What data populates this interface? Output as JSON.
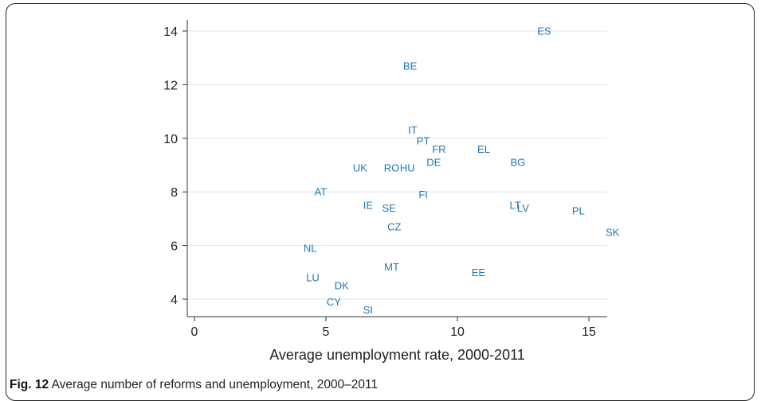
{
  "caption": {
    "label": "Fig. 12",
    "text": "Average number of reforms and unemployment, 2000–2011"
  },
  "chart_data": {
    "type": "scatter",
    "title": "",
    "xlabel": "Average unemployment rate, 2000-2011",
    "ylabel": "",
    "xlim": [
      0,
      15.7
    ],
    "ylim": [
      3.4,
      14.3
    ],
    "xticks": [
      "0",
      "5",
      "10",
      "15"
    ],
    "xtick_values": [
      0,
      5,
      10,
      15
    ],
    "yticks": [
      "4",
      "6",
      "8",
      "10",
      "12",
      "14"
    ],
    "ytick_values": [
      4,
      6,
      8,
      10,
      12,
      14
    ],
    "grid": "horizontal",
    "marker_color": "#1f77b4",
    "points": [
      {
        "label": "ES",
        "x": 13.3,
        "y": 14.0
      },
      {
        "label": "BE",
        "x": 8.2,
        "y": 12.7
      },
      {
        "label": "IT",
        "x": 8.3,
        "y": 10.3
      },
      {
        "label": "PT",
        "x": 8.7,
        "y": 9.9
      },
      {
        "label": "FR",
        "x": 9.3,
        "y": 9.6
      },
      {
        "label": "EL",
        "x": 11.0,
        "y": 9.6
      },
      {
        "label": "DE",
        "x": 9.1,
        "y": 9.1
      },
      {
        "label": "BG",
        "x": 12.3,
        "y": 9.1
      },
      {
        "label": "UK",
        "x": 6.3,
        "y": 8.9
      },
      {
        "label": "RO",
        "x": 7.5,
        "y": 8.9
      },
      {
        "label": "HU",
        "x": 8.1,
        "y": 8.9
      },
      {
        "label": "AT",
        "x": 4.8,
        "y": 8.0
      },
      {
        "label": "FI",
        "x": 8.7,
        "y": 7.9
      },
      {
        "label": "LT",
        "x": 12.2,
        "y": 7.5
      },
      {
        "label": "LV",
        "x": 12.5,
        "y": 7.4
      },
      {
        "label": "PL",
        "x": 14.6,
        "y": 7.3
      },
      {
        "label": "IE",
        "x": 6.6,
        "y": 7.5
      },
      {
        "label": "SE",
        "x": 7.4,
        "y": 7.4
      },
      {
        "label": "CZ",
        "x": 7.6,
        "y": 6.7
      },
      {
        "label": "SK",
        "x": 15.9,
        "y": 6.5
      },
      {
        "label": "NL",
        "x": 4.4,
        "y": 5.9
      },
      {
        "label": "MT",
        "x": 7.5,
        "y": 5.2
      },
      {
        "label": "EE",
        "x": 10.8,
        "y": 5.0
      },
      {
        "label": "LU",
        "x": 4.5,
        "y": 4.8
      },
      {
        "label": "DK",
        "x": 5.6,
        "y": 4.5
      },
      {
        "label": "CY",
        "x": 5.3,
        "y": 3.9
      },
      {
        "label": "SI",
        "x": 6.6,
        "y": 3.6
      }
    ]
  }
}
